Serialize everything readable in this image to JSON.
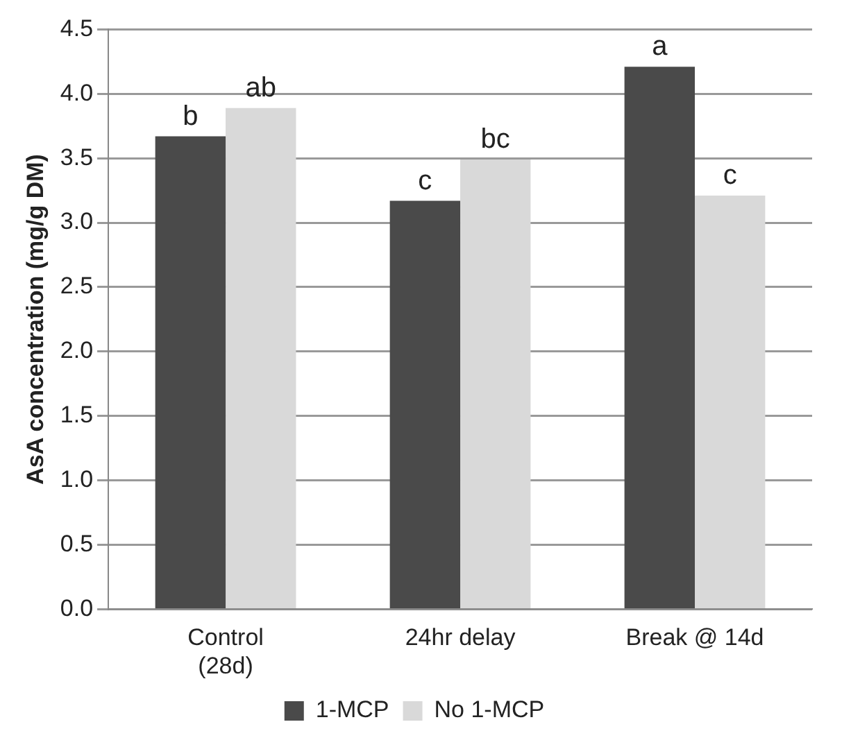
{
  "chart_data": {
    "type": "bar",
    "ylabel": "AsA concentration (mg/g DM)",
    "categories": [
      "Control\n(28d)",
      "24hr delay",
      "Break @ 14d"
    ],
    "series": [
      {
        "name": "1-MCP",
        "color": "#4a4a4a",
        "values": [
          3.67,
          3.17,
          4.21
        ]
      },
      {
        "name": "No 1-MCP",
        "color": "#d9d9d9",
        "values": [
          3.89,
          3.49,
          3.21
        ]
      }
    ],
    "ylim": [
      0,
      4.5
    ],
    "yticks": [
      {
        "value": 0,
        "label": "0.0"
      },
      {
        "value": 0.5,
        "label": "0.5"
      },
      {
        "value": 1,
        "label": "1.0"
      },
      {
        "value": 1.5,
        "label": "1.5"
      },
      {
        "value": 2,
        "label": "2.0"
      },
      {
        "value": 2.5,
        "label": "2.5"
      },
      {
        "value": 3,
        "label": "3.0"
      },
      {
        "value": 3.5,
        "label": "3.5"
      },
      {
        "value": 4,
        "label": "4.0"
      },
      {
        "value": 4.5,
        "label": "4.5"
      }
    ],
    "grid": "y",
    "legend": "bottom",
    "annotations": [
      {
        "text": "b",
        "x": "Control\n(28d)",
        "y": 3.67
      },
      {
        "text": "ab",
        "x": "Control\n(28d)",
        "y": 3.89
      },
      {
        "text": "c",
        "x": "24hr delay",
        "y": 3.17
      },
      {
        "text": "bc",
        "x": "24hr delay",
        "y": 3.49
      },
      {
        "text": "a",
        "x": "Break @ 14d",
        "y": 4.21
      },
      {
        "text": "c",
        "x": "Break @ 14d",
        "y": 3.21
      }
    ]
  }
}
